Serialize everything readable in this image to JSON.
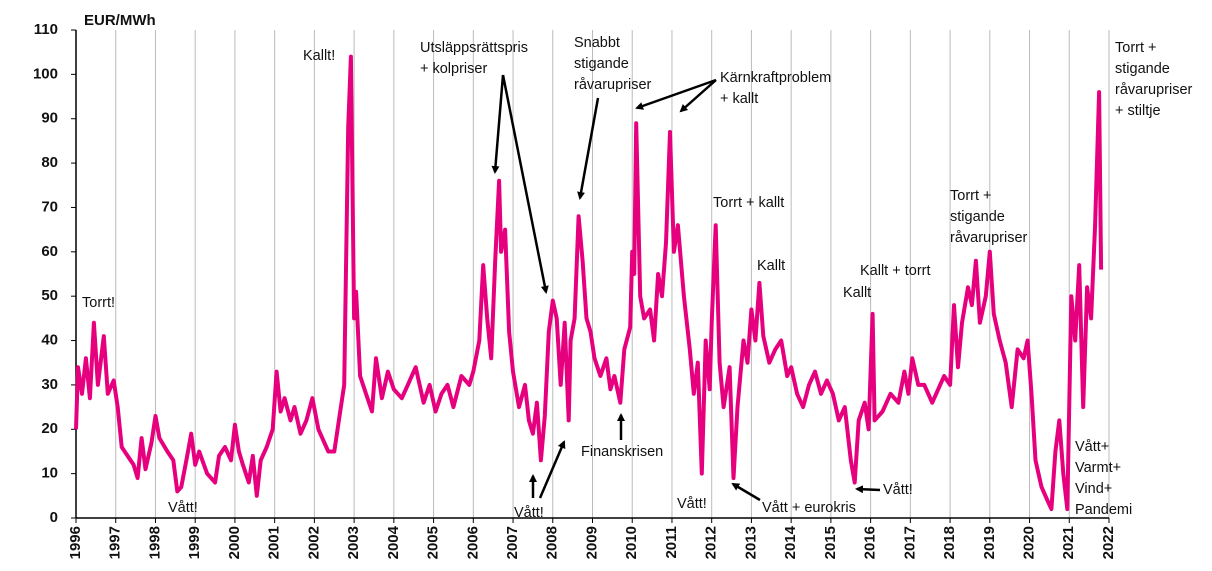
{
  "chart_data": {
    "type": "line",
    "y_label": "EUR/MWh",
    "color": "#e6007e",
    "xlim": [
      1996,
      2022
    ],
    "ylim": [
      0,
      110
    ],
    "xticks": [
      1996,
      1997,
      1998,
      1999,
      2000,
      2001,
      2002,
      2003,
      2004,
      2005,
      2006,
      2007,
      2008,
      2009,
      2010,
      2011,
      2012,
      2013,
      2014,
      2015,
      2016,
      2017,
      2018,
      2019,
      2020,
      2021,
      2022
    ],
    "yticks": [
      0,
      10,
      20,
      30,
      40,
      50,
      60,
      70,
      80,
      90,
      100,
      110
    ],
    "grid": "x",
    "x": [
      1996.0,
      1996.05,
      1996.15,
      1996.25,
      1996.35,
      1996.45,
      1996.55,
      1996.7,
      1996.8,
      1996.95,
      1997.05,
      1997.15,
      1997.3,
      1997.45,
      1997.55,
      1997.65,
      1997.75,
      1997.9,
      1998.0,
      1998.1,
      1998.3,
      1998.45,
      1998.55,
      1998.65,
      1998.8,
      1998.9,
      1999.0,
      1999.1,
      1999.3,
      1999.5,
      1999.6,
      1999.75,
      1999.9,
      2000.0,
      2000.1,
      2000.2,
      2000.35,
      2000.45,
      2000.55,
      2000.65,
      2000.8,
      2000.95,
      2001.05,
      2001.15,
      2001.25,
      2001.4,
      2001.5,
      2001.65,
      2001.8,
      2001.95,
      2002.1,
      2002.25,
      2002.35,
      2002.5,
      2002.65,
      2002.75,
      2002.85,
      2002.92,
      2003.0,
      2003.05,
      2003.15,
      2003.3,
      2003.45,
      2003.55,
      2003.7,
      2003.85,
      2004.0,
      2004.2,
      2004.35,
      2004.55,
      2004.75,
      2004.9,
      2005.05,
      2005.2,
      2005.35,
      2005.5,
      2005.7,
      2005.9,
      2006.0,
      2006.15,
      2006.25,
      2006.35,
      2006.45,
      2006.55,
      2006.65,
      2006.7,
      2006.8,
      2006.9,
      2007.0,
      2007.15,
      2007.3,
      2007.4,
      2007.5,
      2007.6,
      2007.7,
      2007.8,
      2007.9,
      2008.0,
      2008.1,
      2008.2,
      2008.3,
      2008.4,
      2008.45,
      2008.55,
      2008.65,
      2008.75,
      2008.85,
      2008.95,
      2009.05,
      2009.2,
      2009.35,
      2009.45,
      2009.55,
      2009.7,
      2009.8,
      2009.95,
      2010.0,
      2010.05,
      2010.1,
      2010.2,
      2010.3,
      2010.45,
      2010.55,
      2010.65,
      2010.75,
      2010.85,
      2010.95,
      2011.05,
      2011.15,
      2011.3,
      2011.45,
      2011.55,
      2011.65,
      2011.75,
      2011.85,
      2011.95,
      2012.0,
      2012.1,
      2012.2,
      2012.3,
      2012.45,
      2012.55,
      2012.65,
      2012.8,
      2012.9,
      2013.0,
      2013.1,
      2013.2,
      2013.3,
      2013.45,
      2013.6,
      2013.75,
      2013.9,
      2014.0,
      2014.15,
      2014.3,
      2014.45,
      2014.6,
      2014.75,
      2014.9,
      2015.05,
      2015.2,
      2015.35,
      2015.5,
      2015.6,
      2015.7,
      2015.85,
      2015.95,
      2016.05,
      2016.1,
      2016.3,
      2016.5,
      2016.7,
      2016.85,
      2016.95,
      2017.05,
      2017.2,
      2017.35,
      2017.55,
      2017.7,
      2017.85,
      2018.0,
      2018.1,
      2018.2,
      2018.3,
      2018.45,
      2018.55,
      2018.65,
      2018.75,
      2018.9,
      2019.0,
      2019.1,
      2019.25,
      2019.4,
      2019.55,
      2019.7,
      2019.85,
      2019.95,
      2020.05,
      2020.15,
      2020.3,
      2020.45,
      2020.55,
      2020.65,
      2020.75,
      2020.85,
      2020.95,
      2021.05,
      2021.15,
      2021.25,
      2021.35,
      2021.45,
      2021.55,
      2021.65,
      2021.75,
      2021.8
    ],
    "values": [
      20,
      34,
      28,
      36,
      27,
      44,
      30,
      41,
      28,
      31,
      25,
      16,
      14,
      12,
      9,
      18,
      11,
      17,
      23,
      18,
      15,
      13,
      6,
      7,
      14,
      19,
      12,
      15,
      10,
      8,
      14,
      16,
      13,
      21,
      15,
      12,
      8,
      14,
      5,
      13,
      16,
      20,
      33,
      24,
      27,
      22,
      25,
      19,
      22,
      27,
      20,
      17,
      15,
      15,
      24,
      30,
      88,
      104,
      45,
      51,
      32,
      28,
      24,
      36,
      27,
      33,
      29,
      27,
      30,
      34,
      26,
      30,
      24,
      28,
      30,
      25,
      32,
      30,
      33,
      40,
      57,
      45,
      36,
      58,
      76,
      60,
      65,
      42,
      33,
      25,
      30,
      22,
      19,
      26,
      13,
      23,
      42,
      49,
      45,
      30,
      44,
      22,
      40,
      45,
      68,
      58,
      45,
      42,
      36,
      32,
      36,
      29,
      32,
      26,
      38,
      43,
      60,
      55,
      89,
      50,
      45,
      47,
      40,
      55,
      50,
      62,
      87,
      60,
      66,
      50,
      38,
      28,
      35,
      10,
      40,
      29,
      44,
      66,
      35,
      25,
      34,
      9,
      25,
      40,
      35,
      47,
      40,
      53,
      41,
      35,
      38,
      40,
      32,
      34,
      28,
      25,
      30,
      33,
      28,
      31,
      28,
      22,
      25,
      13,
      8,
      22,
      26,
      20,
      46,
      22,
      24,
      28,
      26,
      33,
      28,
      36,
      30,
      30,
      26,
      29,
      32,
      30,
      48,
      34,
      44,
      52,
      48,
      58,
      44,
      50,
      60,
      46,
      40,
      35,
      25,
      38,
      36,
      40,
      28,
      13,
      7,
      4,
      2,
      15,
      22,
      10,
      2,
      50,
      40,
      57,
      25,
      52,
      45,
      66,
      96,
      56
    ],
    "annotations": [
      {
        "lines": [
          "Torrt!"
        ]
      },
      {
        "lines": [
          "Kallt!"
        ]
      },
      {
        "lines": [
          "Utsläppsrättspris",
          "+ kolpriser"
        ]
      },
      {
        "lines": [
          "Snabbt",
          "stigande",
          "råvarupriser"
        ]
      },
      {
        "lines": [
          "Kärnkraftproblem",
          "+ kallt"
        ]
      },
      {
        "lines": [
          "Torrt +",
          "stigande",
          "råvarupriser",
          "+ stiltje"
        ]
      },
      {
        "lines": [
          "Torrt + kallt"
        ]
      },
      {
        "lines": [
          "Kallt"
        ]
      },
      {
        "lines": [
          "Kallt + torrt"
        ]
      },
      {
        "lines": [
          "Kallt"
        ]
      },
      {
        "lines": [
          "Torrt +",
          "stigande",
          "råvarupriser"
        ]
      },
      {
        "lines": [
          "Vått!"
        ]
      },
      {
        "lines": [
          "Vått!"
        ]
      },
      {
        "lines": [
          "Finanskrisen"
        ]
      },
      {
        "lines": [
          "Vått!"
        ]
      },
      {
        "lines": [
          "Vått + eurokris"
        ]
      },
      {
        "lines": [
          "Vått!"
        ]
      },
      {
        "lines": [
          "Vått+",
          "Varmt+",
          "Vind+",
          "Pandemi"
        ]
      }
    ]
  }
}
